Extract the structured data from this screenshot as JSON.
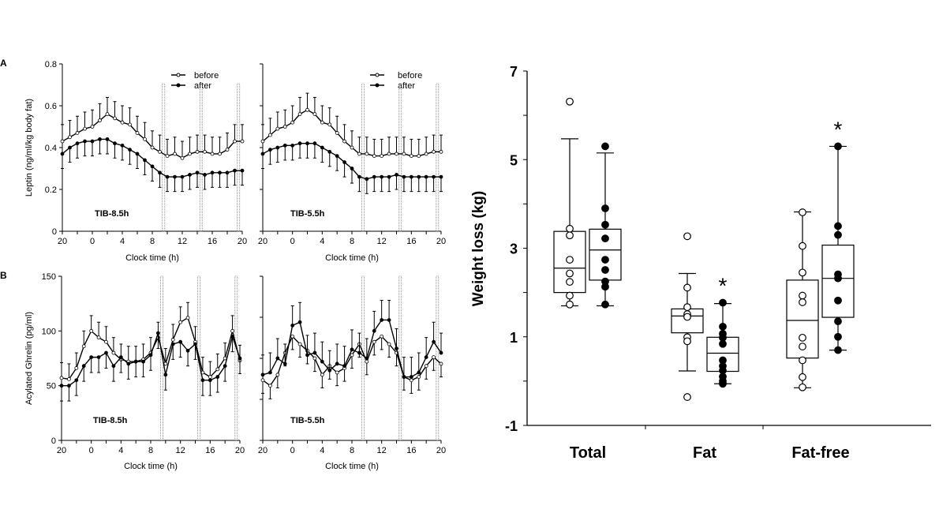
{
  "panel_labels": {
    "a": "A",
    "b": "B"
  },
  "chart_data": [
    {
      "type": "line",
      "id": "leptin-8.5",
      "ylabel": "Leptin (ng/ml/kg body fat)",
      "xlabel": "Clock time (h)",
      "annotation": "TIB-8.5h",
      "ylim": [
        0,
        0.8
      ],
      "yticks": [
        "0",
        "0.2",
        "0.4",
        "0.6",
        "0.8"
      ],
      "xticks": [
        "20",
        "0",
        "4",
        "8",
        "12",
        "16",
        "20"
      ],
      "legend": {
        "position": "top-right",
        "entries": [
          "before",
          "after"
        ]
      },
      "vertical_markers_clock": [
        9.5,
        14.5,
        19.5
      ],
      "x": [
        20,
        21,
        22,
        23,
        0,
        1,
        2,
        3,
        4,
        5,
        6,
        7,
        8,
        9,
        10,
        11,
        12,
        13,
        14,
        15,
        16,
        17,
        18,
        19,
        20
      ],
      "series": [
        {
          "name": "before",
          "marker": "open",
          "error": "up",
          "se": 0.08,
          "values": [
            0.43,
            0.45,
            0.47,
            0.49,
            0.5,
            0.53,
            0.56,
            0.54,
            0.52,
            0.51,
            0.47,
            0.44,
            0.4,
            0.38,
            0.36,
            0.37,
            0.35,
            0.37,
            0.38,
            0.38,
            0.37,
            0.37,
            0.39,
            0.43,
            0.43
          ]
        },
        {
          "name": "after",
          "marker": "filled",
          "error": "down",
          "se": 0.07,
          "values": [
            0.37,
            0.4,
            0.42,
            0.43,
            0.43,
            0.44,
            0.44,
            0.42,
            0.41,
            0.39,
            0.37,
            0.34,
            0.31,
            0.28,
            0.26,
            0.26,
            0.26,
            0.27,
            0.28,
            0.27,
            0.28,
            0.28,
            0.28,
            0.29,
            0.29
          ]
        }
      ]
    },
    {
      "type": "line",
      "id": "leptin-5.5",
      "xlabel": "Clock time (h)",
      "annotation": "TIB-5.5h",
      "ylim": [
        0,
        0.8
      ],
      "xticks": [
        "20",
        "0",
        "4",
        "8",
        "12",
        "16",
        "20"
      ],
      "legend": {
        "position": "top-right",
        "entries": [
          "before",
          "after"
        ]
      },
      "vertical_markers_clock": [
        9.5,
        14.5,
        19.5
      ],
      "x": [
        20,
        21,
        22,
        23,
        0,
        1,
        2,
        3,
        4,
        5,
        6,
        7,
        8,
        9,
        10,
        11,
        12,
        13,
        14,
        15,
        16,
        17,
        18,
        19,
        20
      ],
      "series": [
        {
          "name": "before",
          "marker": "open",
          "error": "up",
          "se": 0.08,
          "values": [
            0.43,
            0.46,
            0.49,
            0.5,
            0.52,
            0.56,
            0.58,
            0.56,
            0.52,
            0.51,
            0.47,
            0.43,
            0.4,
            0.37,
            0.37,
            0.36,
            0.36,
            0.37,
            0.37,
            0.37,
            0.36,
            0.36,
            0.37,
            0.38,
            0.38
          ]
        },
        {
          "name": "after",
          "marker": "filled",
          "error": "down",
          "se": 0.07,
          "values": [
            0.37,
            0.39,
            0.4,
            0.41,
            0.41,
            0.42,
            0.42,
            0.42,
            0.4,
            0.38,
            0.36,
            0.33,
            0.3,
            0.26,
            0.25,
            0.26,
            0.26,
            0.26,
            0.27,
            0.26,
            0.26,
            0.26,
            0.26,
            0.26,
            0.26
          ]
        }
      ]
    },
    {
      "type": "line",
      "id": "ghrelin-8.5",
      "ylabel": "Acylated Ghrelin (pg/ml)",
      "xlabel": "Clock time (h)",
      "annotation": "TIB-8.5h",
      "ylim": [
        0,
        150
      ],
      "yticks": [
        "0",
        "50",
        "100",
        "150"
      ],
      "xticks": [
        "20",
        "0",
        "4",
        "8",
        "12",
        "16",
        "20"
      ],
      "vertical_markers_clock": [
        9.5,
        14.5,
        19.5
      ],
      "x": [
        20,
        21,
        22,
        23,
        0,
        1,
        2,
        3,
        4,
        5,
        6,
        7,
        8,
        9,
        10,
        11,
        12,
        13,
        14,
        15,
        16,
        17,
        18,
        19,
        20
      ],
      "series": [
        {
          "name": "before",
          "marker": "open",
          "error": "up",
          "se": 14,
          "values": [
            57,
            56,
            66,
            86,
            100,
            94,
            90,
            80,
            74,
            72,
            72,
            74,
            80,
            94,
            70,
            92,
            108,
            112,
            90,
            62,
            58,
            65,
            75,
            100,
            73
          ]
        },
        {
          "name": "after",
          "marker": "filled",
          "error": "down",
          "se": 14,
          "values": [
            50,
            50,
            55,
            68,
            76,
            76,
            80,
            68,
            76,
            70,
            72,
            72,
            78,
            98,
            60,
            88,
            90,
            82,
            88,
            55,
            55,
            58,
            68,
            95,
            75
          ]
        }
      ]
    },
    {
      "type": "line",
      "id": "ghrelin-5.5",
      "xlabel": "Clock time (h)",
      "annotation": "TIB-5.5h",
      "ylim": [
        0,
        150
      ],
      "xticks": [
        "20",
        "0",
        "4",
        "8",
        "12",
        "16",
        "20"
      ],
      "vertical_markers_clock": [
        9.5,
        14.5,
        19.5
      ],
      "x": [
        20,
        21,
        22,
        23,
        0,
        1,
        2,
        3,
        4,
        5,
        6,
        7,
        8,
        9,
        10,
        11,
        12,
        13,
        14,
        15,
        16,
        17,
        18,
        19,
        20
      ],
      "series": [
        {
          "name": "before",
          "marker": "open",
          "error": "down",
          "se": 12,
          "values": [
            55,
            50,
            60,
            80,
            95,
            88,
            82,
            75,
            60,
            68,
            62,
            66,
            78,
            88,
            72,
            90,
            95,
            88,
            80,
            58,
            55,
            58,
            68,
            76,
            70
          ]
        },
        {
          "name": "after",
          "marker": "filled",
          "error": "up",
          "se": 18,
          "values": [
            60,
            62,
            75,
            70,
            105,
            108,
            78,
            80,
            72,
            64,
            70,
            68,
            83,
            80,
            75,
            100,
            110,
            110,
            84,
            58,
            58,
            62,
            76,
            90,
            80
          ]
        }
      ]
    },
    {
      "type": "box",
      "id": "weight-loss",
      "ylabel": "Weight loss (kg)",
      "ylim": [
        -1,
        7
      ],
      "yticks": [
        "-1",
        "1",
        "3",
        "5",
        "7"
      ],
      "categories": [
        "Total",
        "Fat",
        "Fat-free"
      ],
      "groups": [
        {
          "category": "Total",
          "condition": "before",
          "marker": "open",
          "whisker": [
            1.7,
            5.47
          ],
          "q1": 2.0,
          "median": 2.55,
          "q3": 3.38,
          "significant": false,
          "points": [
            6.31,
            3.44,
            3.29,
            2.74,
            2.43,
            2.24,
            1.93,
            1.73
          ]
        },
        {
          "category": "Total",
          "condition": "after",
          "marker": "filled",
          "whisker": [
            1.7,
            5.15
          ],
          "q1": 2.28,
          "median": 2.96,
          "q3": 3.43,
          "significant": false,
          "points": [
            5.3,
            3.9,
            3.53,
            3.22,
            2.74,
            2.51,
            2.25,
            2.13,
            1.73
          ]
        },
        {
          "category": "Fat",
          "condition": "before",
          "marker": "open",
          "whisker": [
            0.23,
            2.43
          ],
          "q1": 1.09,
          "median": 1.47,
          "q3": 1.63,
          "significant": false,
          "points": [
            3.27,
            2.11,
            1.67,
            1.51,
            1.45,
            0.99,
            0.9,
            -0.36
          ]
        },
        {
          "category": "Fat",
          "condition": "after",
          "marker": "filled",
          "whisker": [
            -0.06,
            1.75
          ],
          "q1": 0.22,
          "median": 0.63,
          "q3": 0.99,
          "significant": true,
          "points": [
            1.77,
            1.23,
            1.07,
            0.98,
            0.84,
            0.47,
            0.34,
            0.24,
            0.1,
            0.0,
            -0.06
          ]
        },
        {
          "category": "Fat-free",
          "condition": "before",
          "marker": "open",
          "whisker": [
            -0.15,
            3.82
          ],
          "q1": 0.52,
          "median": 1.37,
          "q3": 2.28,
          "significant": false,
          "points": [
            3.81,
            3.05,
            2.45,
            1.93,
            1.78,
            0.98,
            0.78,
            0.47,
            0.09,
            -0.14
          ]
        },
        {
          "category": "Fat-free",
          "condition": "after",
          "marker": "filled",
          "whisker": [
            0.7,
            5.3
          ],
          "q1": 1.44,
          "median": 2.32,
          "q3": 3.07,
          "significant": true,
          "points": [
            5.3,
            3.5,
            3.3,
            2.41,
            2.32,
            1.82,
            1.35,
            1.0,
            0.7
          ]
        }
      ],
      "significance_mark": "*"
    }
  ]
}
